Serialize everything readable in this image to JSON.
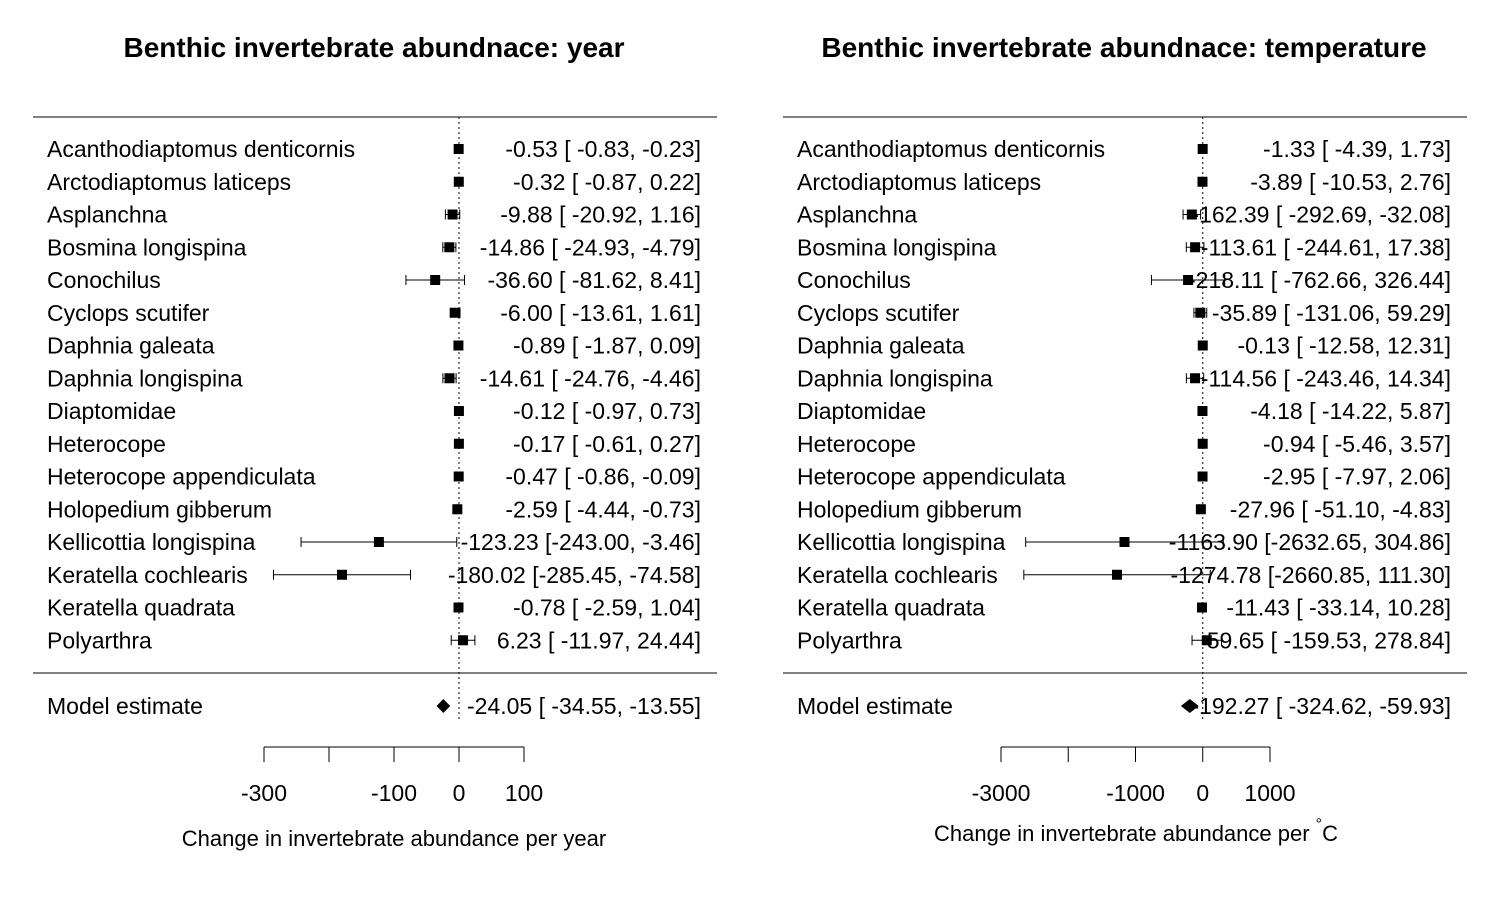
{
  "colors": {
    "ink": "#000000",
    "background": "#ffffff"
  },
  "chart_data": [
    {
      "type": "forest",
      "title": "Benthic invertebrate abundnace: year",
      "xlabel": "Change in invertebrate abundance per year",
      "xlabel_superscript": "",
      "xlim": [
        -300,
        100
      ],
      "xticks": [
        -300,
        -200,
        -100,
        0,
        100
      ],
      "xtick_labels": [
        "-300",
        "",
        "-100",
        "0",
        "100"
      ],
      "reference_line": 0,
      "studies": [
        {
          "name": "Acanthodiaptomus denticornis",
          "est": -0.53,
          "lo": -0.83,
          "hi": -0.23,
          "text": "-0.53 [  -0.83,  -0.23]"
        },
        {
          "name": "Arctodiaptomus laticeps",
          "est": -0.32,
          "lo": -0.87,
          "hi": 0.22,
          "text": "-0.32 [  -0.87,   0.22]"
        },
        {
          "name": "Asplanchna",
          "est": -9.88,
          "lo": -20.92,
          "hi": 1.16,
          "text": "-9.88 [ -20.92,   1.16]"
        },
        {
          "name": "Bosmina longispina",
          "est": -14.86,
          "lo": -24.93,
          "hi": -4.79,
          "text": "-14.86 [ -24.93,  -4.79]"
        },
        {
          "name": "Conochilus",
          "est": -36.6,
          "lo": -81.62,
          "hi": 8.41,
          "text": "-36.60 [ -81.62,   8.41]"
        },
        {
          "name": "Cyclops scutifer",
          "est": -6.0,
          "lo": -13.61,
          "hi": 1.61,
          "text": "-6.00 [ -13.61,   1.61]"
        },
        {
          "name": "Daphnia galeata",
          "est": -0.89,
          "lo": -1.87,
          "hi": 0.09,
          "text": "-0.89 [  -1.87,   0.09]"
        },
        {
          "name": "Daphnia longispina",
          "est": -14.61,
          "lo": -24.76,
          "hi": -4.46,
          "text": "-14.61 [ -24.76,  -4.46]"
        },
        {
          "name": "Diaptomidae",
          "est": -0.12,
          "lo": -0.97,
          "hi": 0.73,
          "text": "-0.12 [  -0.97,   0.73]"
        },
        {
          "name": "Heterocope",
          "est": -0.17,
          "lo": -0.61,
          "hi": 0.27,
          "text": "-0.17 [  -0.61,   0.27]"
        },
        {
          "name": "Heterocope appendiculata",
          "est": -0.47,
          "lo": -0.86,
          "hi": -0.09,
          "text": "-0.47 [  -0.86,  -0.09]"
        },
        {
          "name": "Holopedium gibberum",
          "est": -2.59,
          "lo": -4.44,
          "hi": -0.73,
          "text": "-2.59 [  -4.44,  -0.73]"
        },
        {
          "name": "Kellicottia longispina",
          "est": -123.23,
          "lo": -243.0,
          "hi": -3.46,
          "text": "-123.23 [-243.00,  -3.46]"
        },
        {
          "name": "Keratella cochlearis",
          "est": -180.02,
          "lo": -285.45,
          "hi": -74.58,
          "text": "-180.02 [-285.45, -74.58]"
        },
        {
          "name": "Keratella quadrata",
          "est": -0.78,
          "lo": -2.59,
          "hi": 1.04,
          "text": "-0.78 [  -2.59,   1.04]"
        },
        {
          "name": "Polyarthra",
          "est": 6.23,
          "lo": -11.97,
          "hi": 24.44,
          "text": "6.23 [ -11.97,  24.44]"
        }
      ],
      "summary": {
        "name": "Model estimate",
        "est": -24.05,
        "lo": -34.55,
        "hi": -13.55,
        "text": "-24.05 [ -34.55, -13.55]"
      }
    },
    {
      "type": "forest",
      "title": "Benthic invertebrate abundnace: temperature",
      "xlabel": "Change in invertebrate abundance per ",
      "xlabel_superscript": "°",
      "xlabel_tail": "C",
      "xlim": [
        -3000,
        1000
      ],
      "xticks": [
        -3000,
        -2000,
        -1000,
        0,
        1000
      ],
      "xtick_labels": [
        "-3000",
        "",
        "-1000",
        "0",
        "1000"
      ],
      "reference_line": 0,
      "studies": [
        {
          "name": "Acanthodiaptomus denticornis",
          "est": -1.33,
          "lo": -4.39,
          "hi": 1.73,
          "text": "-1.33 [   -4.39,    1.73]"
        },
        {
          "name": "Arctodiaptomus laticeps",
          "est": -3.89,
          "lo": -10.53,
          "hi": 2.76,
          "text": "-3.89 [  -10.53,    2.76]"
        },
        {
          "name": "Asplanchna",
          "est": -162.39,
          "lo": -292.69,
          "hi": -32.08,
          "text": "-162.39 [ -292.69, -32.08]"
        },
        {
          "name": "Bosmina longispina",
          "est": -113.61,
          "lo": -244.61,
          "hi": 17.38,
          "text": "-113.61 [ -244.61,  17.38]"
        },
        {
          "name": "Conochilus",
          "est": -218.11,
          "lo": -762.66,
          "hi": 326.44,
          "text": "-218.11 [ -762.66, 326.44]"
        },
        {
          "name": "Cyclops scutifer",
          "est": -35.89,
          "lo": -131.06,
          "hi": 59.29,
          "text": "-35.89 [ -131.06,  59.29]"
        },
        {
          "name": "Daphnia galeata",
          "est": -0.13,
          "lo": -12.58,
          "hi": 12.31,
          "text": "-0.13 [  -12.58,   12.31]"
        },
        {
          "name": "Daphnia longispina",
          "est": -114.56,
          "lo": -243.46,
          "hi": 14.34,
          "text": "-114.56 [ -243.46,  14.34]"
        },
        {
          "name": "Diaptomidae",
          "est": -4.18,
          "lo": -14.22,
          "hi": 5.87,
          "text": "-4.18 [  -14.22,    5.87]"
        },
        {
          "name": "Heterocope",
          "est": -0.94,
          "lo": -5.46,
          "hi": 3.57,
          "text": "-0.94 [   -5.46,    3.57]"
        },
        {
          "name": "Heterocope appendiculata",
          "est": -2.95,
          "lo": -7.97,
          "hi": 2.06,
          "text": "-2.95 [   -7.97,    2.06]"
        },
        {
          "name": "Holopedium gibberum",
          "est": -27.96,
          "lo": -51.1,
          "hi": -4.83,
          "text": "-27.96 [  -51.10,   -4.83]"
        },
        {
          "name": "Kellicottia longispina",
          "est": -1163.9,
          "lo": -2632.65,
          "hi": 304.86,
          "text": "-1163.90 [-2632.65, 304.86]"
        },
        {
          "name": "Keratella cochlearis",
          "est": -1274.78,
          "lo": -2660.85,
          "hi": 111.3,
          "text": "-1274.78 [-2660.85, 111.30]"
        },
        {
          "name": "Keratella quadrata",
          "est": -11.43,
          "lo": -33.14,
          "hi": 10.28,
          "text": "-11.43 [  -33.14,   10.28]"
        },
        {
          "name": "Polyarthra",
          "est": 59.65,
          "lo": -159.53,
          "hi": 278.84,
          "text": "59.65 [ -159.53, 278.84]"
        }
      ],
      "summary": {
        "name": "Model estimate",
        "est": -192.27,
        "lo": -324.62,
        "hi": -59.93,
        "text": "-192.27 [ -324.62, -59.93]"
      }
    }
  ]
}
